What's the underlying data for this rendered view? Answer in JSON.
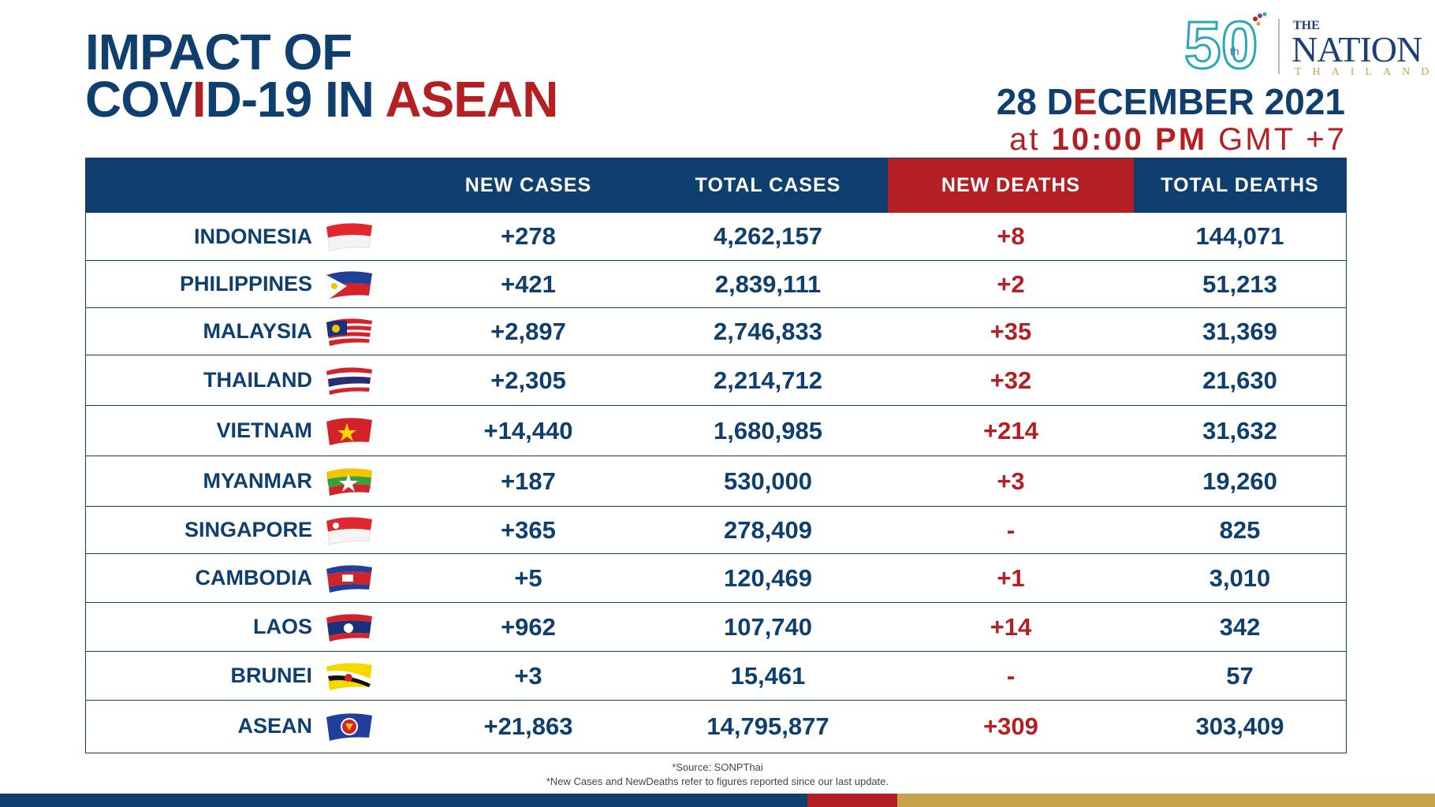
{
  "header": {
    "title_line1": "IMPACT OF",
    "title_line2_a": "COV",
    "title_line2_b": "I",
    "title_line2_c": "D-19 IN ",
    "title_line2_d": "ASEAN",
    "date_a": "28 D",
    "date_b": "E",
    "date_c": "CEMBER 2021",
    "time_prefix": "at ",
    "time_value": "10:00 PM",
    "time_suffix": " GMT +7"
  },
  "logo": {
    "fifty": "50",
    "th": "th",
    "the": "THE",
    "nation": "NATION",
    "thailand": "THAILAND"
  },
  "table": {
    "columns": [
      "",
      "NEW CASES",
      "TOTAL CASES",
      "NEW DEATHS",
      "TOTAL DEATHS"
    ],
    "rows": [
      {
        "country": "INDONESIA",
        "new_cases": "+278",
        "total_cases": "4,262,157",
        "new_deaths": "+8",
        "total_deaths": "144,071"
      },
      {
        "country": "PHILIPPINES",
        "new_cases": "+421",
        "total_cases": "2,839,111",
        "new_deaths": "+2",
        "total_deaths": "51,213"
      },
      {
        "country": "MALAYSIA",
        "new_cases": "+2,897",
        "total_cases": "2,746,833",
        "new_deaths": "+35",
        "total_deaths": "31,369"
      },
      {
        "country": "THAILAND",
        "new_cases": "+2,305",
        "total_cases": "2,214,712",
        "new_deaths": "+32",
        "total_deaths": "21,630"
      },
      {
        "country": "VIETNAM",
        "new_cases": "+14,440",
        "total_cases": "1,680,985",
        "new_deaths": "+214",
        "total_deaths": "31,632"
      },
      {
        "country": "MYANMAR",
        "new_cases": "+187",
        "total_cases": "530,000",
        "new_deaths": "+3",
        "total_deaths": "19,260"
      },
      {
        "country": "SINGAPORE",
        "new_cases": "+365",
        "total_cases": "278,409",
        "new_deaths": "-",
        "total_deaths": "825"
      },
      {
        "country": "CAMBODIA",
        "new_cases": "+5",
        "total_cases": "120,469",
        "new_deaths": "+1",
        "total_deaths": "3,010"
      },
      {
        "country": "LAOS",
        "new_cases": "+962",
        "total_cases": "107,740",
        "new_deaths": "+14",
        "total_deaths": "342"
      },
      {
        "country": "BRUNEI",
        "new_cases": "+3",
        "total_cases": "15,461",
        "new_deaths": "-",
        "total_deaths": "57"
      },
      {
        "country": "ASEAN",
        "new_cases": "+21,863",
        "total_cases": "14,795,877",
        "new_deaths": "+309",
        "total_deaths": "303,409"
      }
    ]
  },
  "footer": {
    "source": "*Source: SONPThai",
    "note": "*New Cases and NewDeaths refer to figures reported since our last update."
  },
  "colors": {
    "navy": "#0f3f6e",
    "red": "#b41f24",
    "gold": "#c9a24c"
  }
}
